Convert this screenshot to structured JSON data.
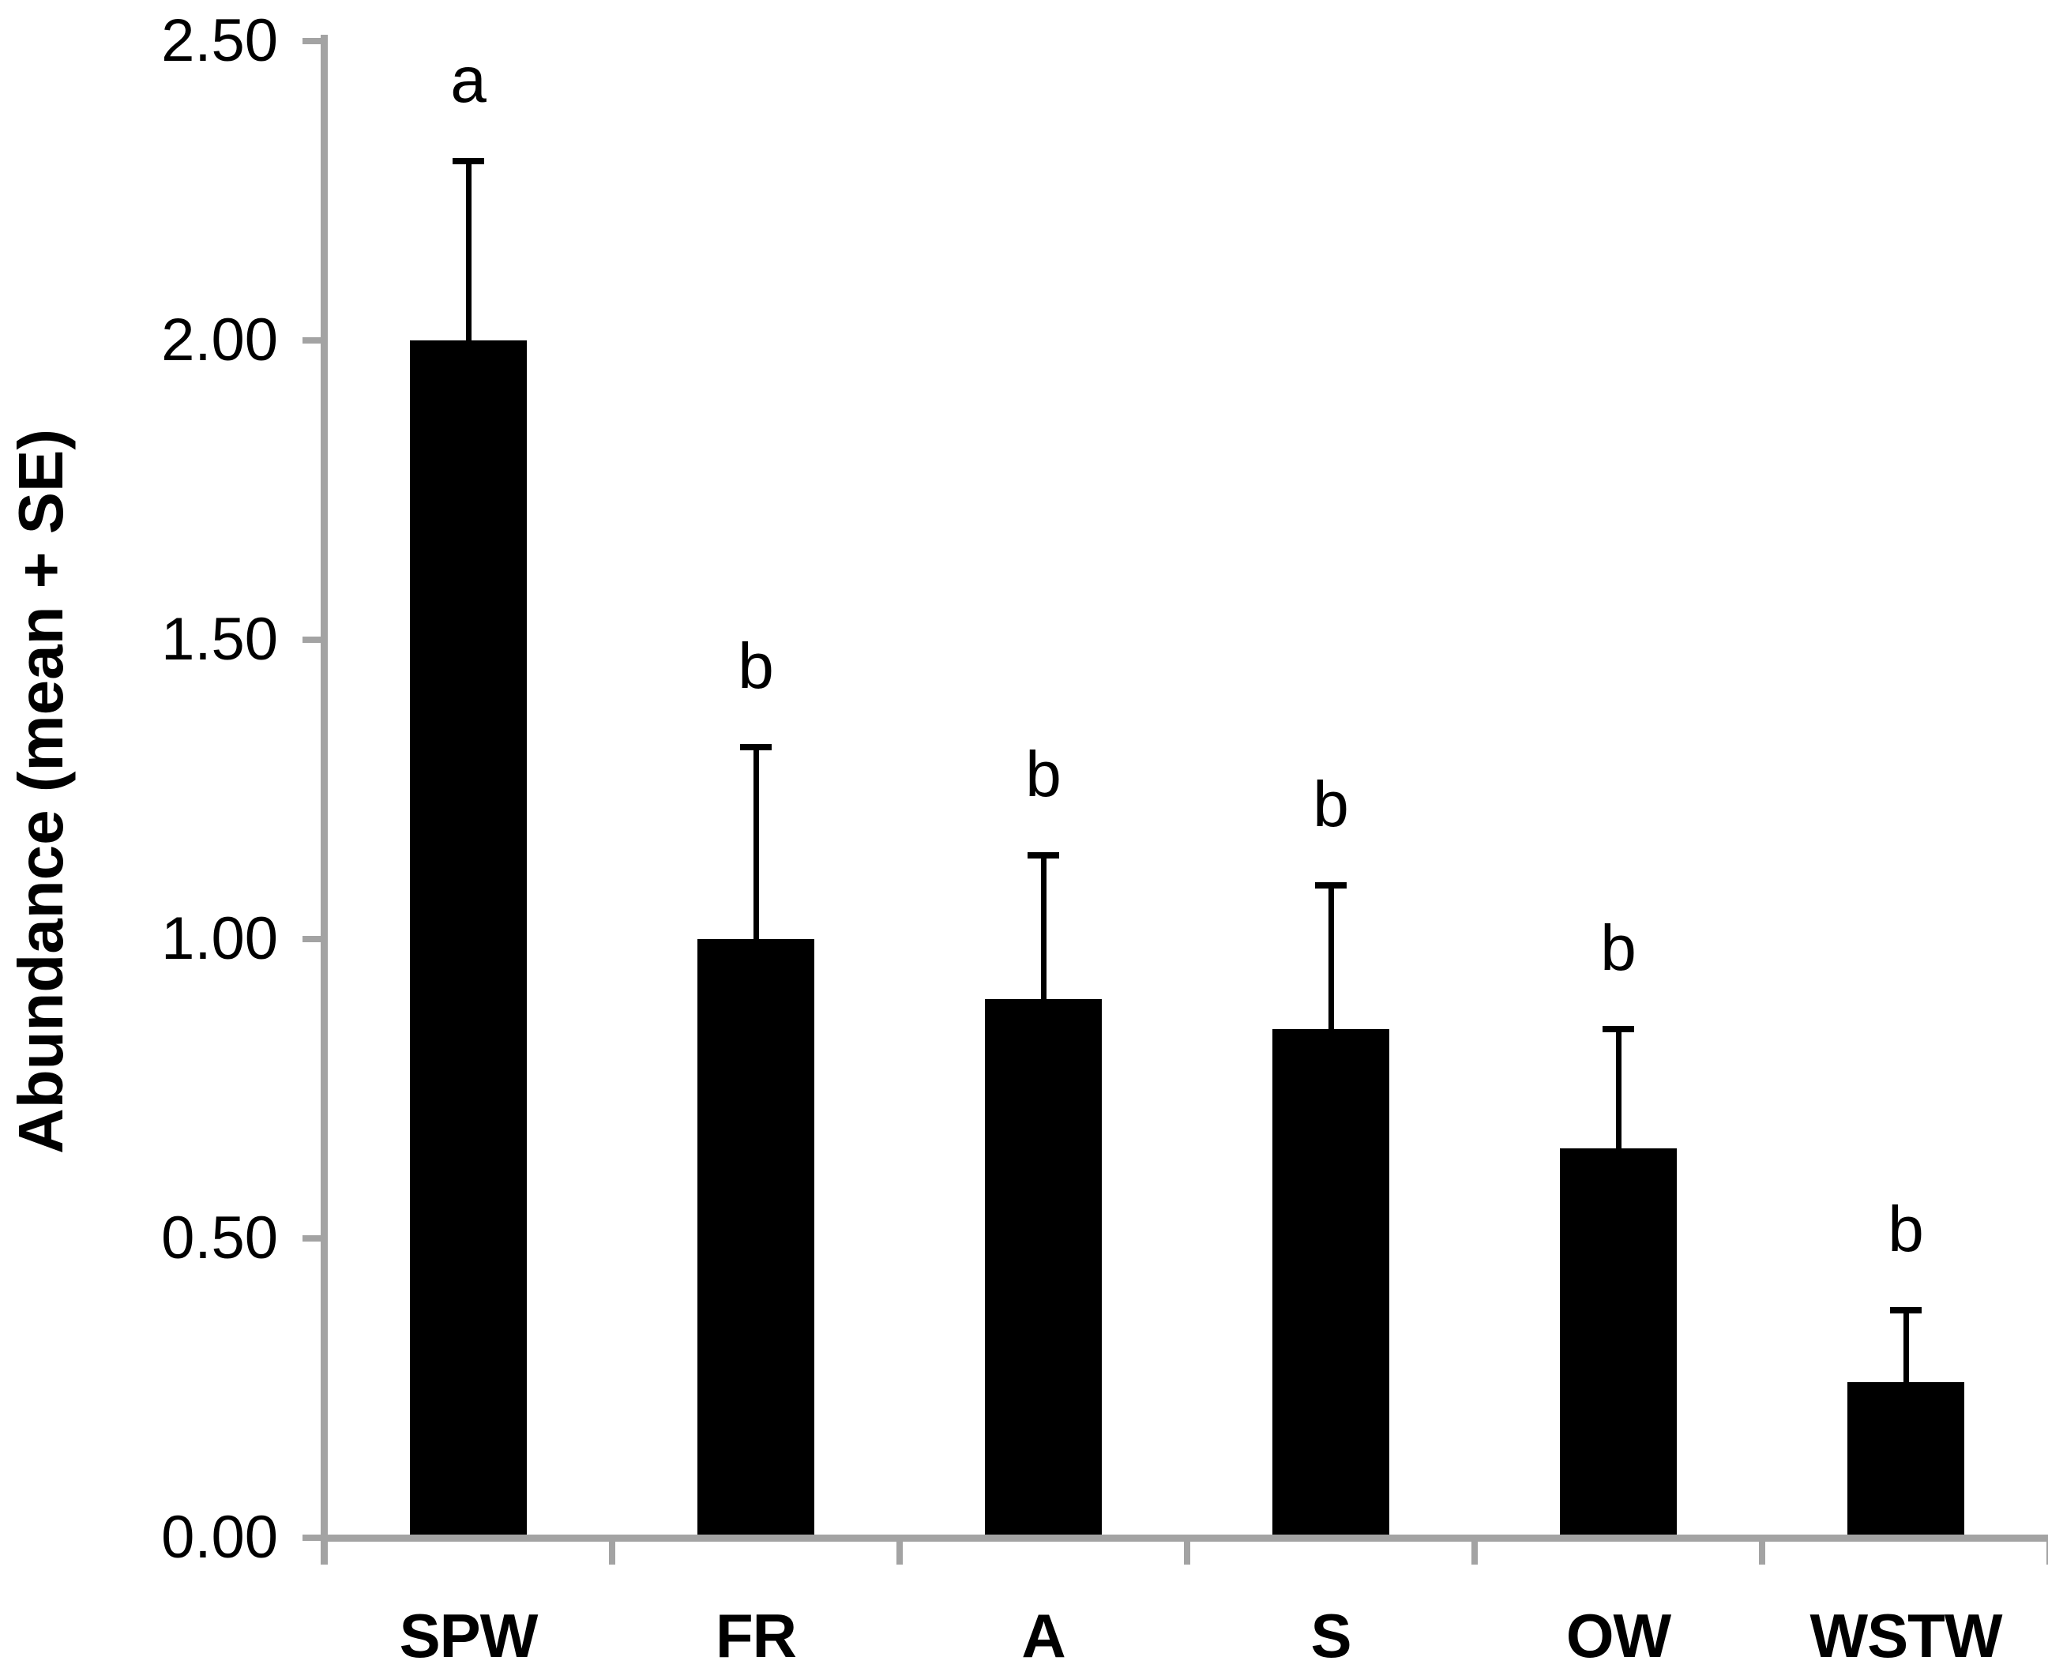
{
  "chart_data": {
    "type": "bar",
    "title": "",
    "ylabel": "Abundance (mean + SE)",
    "xlabel": "",
    "ylim": [
      0.0,
      2.5
    ],
    "ytick_interval": 0.5,
    "yticks": [
      {
        "value": 0.0,
        "label": "0.00"
      },
      {
        "value": 0.5,
        "label": "0.50"
      },
      {
        "value": 1.0,
        "label": "1.00"
      },
      {
        "value": 1.5,
        "label": "1.50"
      },
      {
        "value": 2.0,
        "label": "2.00"
      },
      {
        "value": 2.5,
        "label": "2.50"
      }
    ],
    "categories": [
      "SPW",
      "FR",
      "A",
      "S",
      "OW",
      "WSTW"
    ],
    "values": [
      2.0,
      1.0,
      0.9,
      0.85,
      0.65,
      0.26
    ],
    "errors_se": [
      0.3,
      0.32,
      0.24,
      0.24,
      0.2,
      0.12
    ],
    "sig_letters": [
      "a",
      "b",
      "b",
      "b",
      "b",
      "b"
    ],
    "legend": "none",
    "grid": false,
    "bar_color": "#000000",
    "error_bar_color": "#000000",
    "axis_color": "#A3A3A3",
    "text_color": "#000000",
    "background_color": "#ffffff"
  }
}
